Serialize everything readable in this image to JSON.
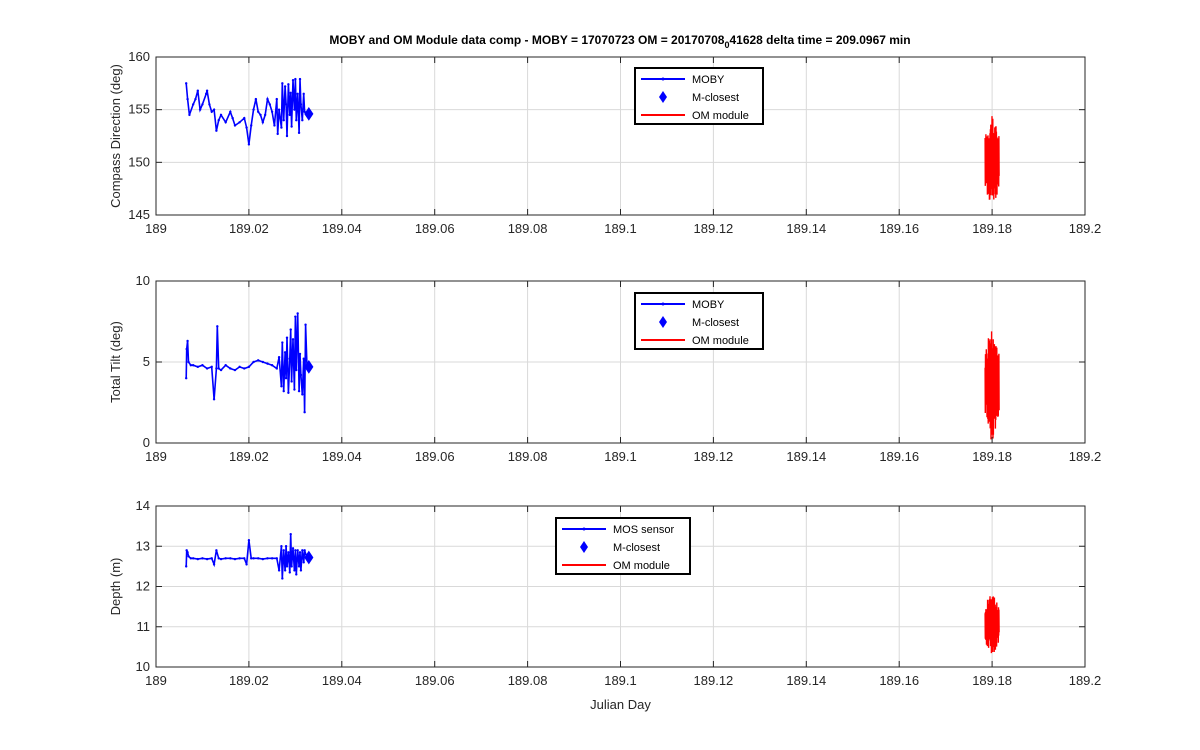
{
  "figure": {
    "title_main": "MOBY and OM Module data comp - MOBY = 17070723 OM = 20170708",
    "title_sub": "0",
    "title_tail": "41628 delta time = 209.0967 min"
  },
  "colors": {
    "moby": "#0000ff",
    "om": "#ff0000",
    "grid": "#d9d9d9",
    "axis": "#262626"
  },
  "chart_data": [
    {
      "type": "line",
      "ylabel": "Compass Direction (deg)",
      "xlabel": "",
      "xlim": [
        189,
        189.2
      ],
      "ylim": [
        145,
        160
      ],
      "xticks": [
        189,
        189.02,
        189.04,
        189.06,
        189.08,
        189.1,
        189.12,
        189.14,
        189.16,
        189.18,
        189.2
      ],
      "xtick_labels": [
        "189",
        "189.02",
        "189.04",
        "189.06",
        "189.08",
        "189.1",
        "189.12",
        "189.14",
        "189.16",
        "189.18",
        "189.2"
      ],
      "yticks": [
        145,
        150,
        155,
        160
      ],
      "ytick_labels": [
        "145",
        "150",
        "155",
        "160"
      ],
      "grid": true,
      "legend_position": "top-center",
      "series": [
        {
          "name": "MOBY",
          "kind": "moby",
          "x_range": [
            189.0065,
            189.033
          ],
          "points": [
            [
              189.0065,
              157.5
            ],
            [
              189.0068,
              156
            ],
            [
              189.0072,
              154.5
            ],
            [
              189.008,
              155.5
            ],
            [
              189.0085,
              156
            ],
            [
              189.009,
              156.8
            ],
            [
              189.0095,
              155
            ],
            [
              189.01,
              155.5
            ],
            [
              189.0108,
              156.5
            ],
            [
              189.011,
              156.8
            ],
            [
              189.0115,
              155.5
            ],
            [
              189.012,
              154.8
            ],
            [
              189.0125,
              155
            ],
            [
              189.013,
              153
            ],
            [
              189.0135,
              154
            ],
            [
              189.014,
              154.5
            ],
            [
              189.015,
              153.8
            ],
            [
              189.016,
              154.8
            ],
            [
              189.0165,
              154.2
            ],
            [
              189.017,
              153.5
            ],
            [
              189.018,
              153.8
            ],
            [
              189.019,
              154.2
            ],
            [
              189.0195,
              153.3
            ],
            [
              189.02,
              151.7
            ],
            [
              189.0205,
              153.5
            ],
            [
              189.021,
              155
            ],
            [
              189.0215,
              156
            ],
            [
              189.022,
              154.8
            ],
            [
              189.0225,
              154.5
            ],
            [
              189.023,
              153.8
            ],
            [
              189.0235,
              154.5
            ],
            [
              189.024,
              156
            ],
            [
              189.0245,
              155.5
            ],
            [
              189.025,
              154.8
            ],
            [
              189.0255,
              153.5
            ],
            [
              189.026,
              156
            ],
            [
              189.0262,
              152.7
            ],
            [
              189.0265,
              155
            ],
            [
              189.027,
              153.3
            ],
            [
              189.0272,
              157.5
            ],
            [
              189.0275,
              154
            ],
            [
              189.0278,
              157.2
            ],
            [
              189.028,
              155.5
            ],
            [
              189.0282,
              152.5
            ],
            [
              189.0285,
              157.4
            ],
            [
              189.0288,
              154.5
            ],
            [
              189.029,
              156.6
            ],
            [
              189.0292,
              153.4
            ],
            [
              189.0295,
              157.8
            ],
            [
              189.0298,
              155
            ],
            [
              189.03,
              157.9
            ],
            [
              189.0302,
              154
            ],
            [
              189.0305,
              156.5
            ],
            [
              189.0308,
              152.8
            ],
            [
              189.031,
              157.9
            ],
            [
              189.0312,
              155.5
            ],
            [
              189.0315,
              154
            ],
            [
              189.0318,
              156.5
            ],
            [
              189.032,
              154.8
            ],
            [
              189.0325,
              154.6
            ],
            [
              189.033,
              154.5
            ]
          ]
        },
        {
          "name": "M-closest",
          "kind": "marker",
          "x": 189.0329,
          "y": 154.6
        },
        {
          "name": "OM module",
          "kind": "om",
          "x_range": [
            189.1785,
            189.1815
          ],
          "y_low": 145.8,
          "y_high": 154.4
        }
      ]
    },
    {
      "type": "line",
      "ylabel": "Total Tilt (deg)",
      "xlabel": "",
      "xlim": [
        189,
        189.2
      ],
      "ylim": [
        0,
        10
      ],
      "xticks": [
        189,
        189.02,
        189.04,
        189.06,
        189.08,
        189.1,
        189.12,
        189.14,
        189.16,
        189.18,
        189.2
      ],
      "xtick_labels": [
        "189",
        "189.02",
        "189.04",
        "189.06",
        "189.08",
        "189.1",
        "189.12",
        "189.14",
        "189.16",
        "189.18",
        "189.2"
      ],
      "yticks": [
        0,
        5,
        10
      ],
      "ytick_labels": [
        "0",
        "5",
        "10"
      ],
      "grid": true,
      "legend_position": "top-center",
      "series": [
        {
          "name": "MOBY",
          "kind": "moby",
          "x_range": [
            189.0065,
            189.033
          ],
          "points": [
            [
              189.0065,
              4.0
            ],
            [
              189.0066,
              5.8
            ],
            [
              189.0068,
              6.3
            ],
            [
              189.007,
              5.0
            ],
            [
              189.0075,
              4.8
            ],
            [
              189.008,
              4.8
            ],
            [
              189.009,
              4.7
            ],
            [
              189.01,
              4.8
            ],
            [
              189.011,
              4.6
            ],
            [
              189.012,
              4.7
            ],
            [
              189.0125,
              2.7
            ],
            [
              189.013,
              4.6
            ],
            [
              189.0132,
              7.2
            ],
            [
              189.0135,
              4.6
            ],
            [
              189.014,
              4.5
            ],
            [
              189.015,
              4.8
            ],
            [
              189.016,
              4.6
            ],
            [
              189.017,
              4.5
            ],
            [
              189.018,
              4.7
            ],
            [
              189.019,
              4.6
            ],
            [
              189.02,
              4.7
            ],
            [
              189.021,
              5.0
            ],
            [
              189.022,
              5.1
            ],
            [
              189.023,
              5.0
            ],
            [
              189.024,
              4.9
            ],
            [
              189.025,
              4.8
            ],
            [
              189.026,
              4.6
            ],
            [
              189.0265,
              5.3
            ],
            [
              189.027,
              3.5
            ],
            [
              189.0272,
              6.2
            ],
            [
              189.0275,
              3.2
            ],
            [
              189.0278,
              5.6
            ],
            [
              189.028,
              4.0
            ],
            [
              189.0282,
              6.5
            ],
            [
              189.0285,
              3.1
            ],
            [
              189.0288,
              5.2
            ],
            [
              189.029,
              7.0
            ],
            [
              189.0292,
              3.8
            ],
            [
              189.0295,
              6.4
            ],
            [
              189.0298,
              3.3
            ],
            [
              189.03,
              7.8
            ],
            [
              189.0302,
              4.5
            ],
            [
              189.0305,
              8.0
            ],
            [
              189.0308,
              3.2
            ],
            [
              189.031,
              5.5
            ],
            [
              189.0312,
              4.2
            ],
            [
              189.0315,
              3.0
            ],
            [
              189.0318,
              5.2
            ],
            [
              189.032,
              1.9
            ],
            [
              189.0322,
              7.3
            ],
            [
              189.0325,
              4.7
            ],
            [
              189.033,
              4.7
            ]
          ]
        },
        {
          "name": "M-closest",
          "kind": "marker",
          "x": 189.0329,
          "y": 4.7
        },
        {
          "name": "OM module",
          "kind": "om",
          "x_range": [
            189.1785,
            189.1815
          ],
          "y_low": 0.1,
          "y_high": 7.3
        }
      ]
    },
    {
      "type": "line",
      "ylabel": "Depth (m)",
      "xlabel": "Julian Day",
      "xlim": [
        189,
        189.2
      ],
      "ylim": [
        10,
        14
      ],
      "xticks": [
        189,
        189.02,
        189.04,
        189.06,
        189.08,
        189.1,
        189.12,
        189.14,
        189.16,
        189.18,
        189.2
      ],
      "xtick_labels": [
        "189",
        "189.02",
        "189.04",
        "189.06",
        "189.08",
        "189.1",
        "189.12",
        "189.14",
        "189.16",
        "189.18",
        "189.2"
      ],
      "yticks": [
        10,
        11,
        12,
        13,
        14
      ],
      "ytick_labels": [
        "10",
        "11",
        "12",
        "13",
        "14"
      ],
      "grid": true,
      "legend_position": "top-center",
      "series": [
        {
          "name": "MOS sensor",
          "kind": "moby",
          "x_range": [
            189.0065,
            189.033
          ],
          "points": [
            [
              189.0065,
              12.5
            ],
            [
              189.0066,
              12.9
            ],
            [
              189.0068,
              12.85
            ],
            [
              189.007,
              12.75
            ],
            [
              189.0075,
              12.7
            ],
            [
              189.008,
              12.7
            ],
            [
              189.009,
              12.68
            ],
            [
              189.01,
              12.7
            ],
            [
              189.011,
              12.68
            ],
            [
              189.012,
              12.7
            ],
            [
              189.0125,
              12.55
            ],
            [
              189.013,
              12.9
            ],
            [
              189.0135,
              12.7
            ],
            [
              189.014,
              12.68
            ],
            [
              189.015,
              12.7
            ],
            [
              189.016,
              12.7
            ],
            [
              189.017,
              12.68
            ],
            [
              189.018,
              12.7
            ],
            [
              189.019,
              12.7
            ],
            [
              189.0195,
              12.55
            ],
            [
              189.02,
              13.15
            ],
            [
              189.0205,
              12.7
            ],
            [
              189.021,
              12.7
            ],
            [
              189.022,
              12.7
            ],
            [
              189.023,
              12.68
            ],
            [
              189.024,
              12.7
            ],
            [
              189.025,
              12.7
            ],
            [
              189.026,
              12.7
            ],
            [
              189.0265,
              12.4
            ],
            [
              189.027,
              13.0
            ],
            [
              189.0272,
              12.2
            ],
            [
              189.0275,
              12.9
            ],
            [
              189.0278,
              12.4
            ],
            [
              189.028,
              13.0
            ],
            [
              189.0282,
              12.5
            ],
            [
              189.0285,
              12.85
            ],
            [
              189.0288,
              12.35
            ],
            [
              189.029,
              13.3
            ],
            [
              189.0292,
              12.5
            ],
            [
              189.0295,
              12.95
            ],
            [
              189.0298,
              12.4
            ],
            [
              189.03,
              12.9
            ],
            [
              189.0302,
              12.3
            ],
            [
              189.0305,
              12.9
            ],
            [
              189.0308,
              12.5
            ],
            [
              189.031,
              12.85
            ],
            [
              189.0312,
              12.4
            ],
            [
              189.0315,
              12.9
            ],
            [
              189.0318,
              12.6
            ],
            [
              189.032,
              12.9
            ],
            [
              189.0325,
              12.7
            ],
            [
              189.033,
              12.72
            ]
          ]
        },
        {
          "name": "M-closest",
          "kind": "marker",
          "x": 189.0329,
          "y": 12.72
        },
        {
          "name": "OM module",
          "kind": "om",
          "x_range": [
            189.1785,
            189.1815
          ],
          "y_low": 10.3,
          "y_high": 11.85
        }
      ]
    }
  ]
}
